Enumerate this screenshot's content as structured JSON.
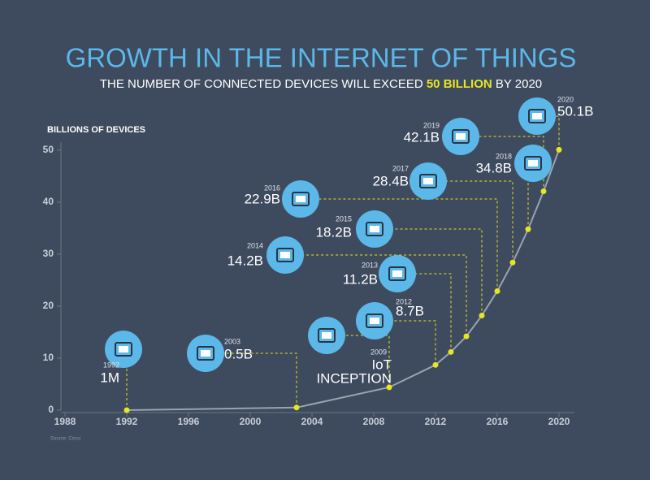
{
  "chart_data": {
    "type": "line",
    "title": "GROWTH IN THE INTERNET OF THINGS",
    "subtitle_parts": [
      "THE NUMBER OF CONNECTED DEVICES WILL EXCEED ",
      "50 BILLION",
      " BY 2020"
    ],
    "y_label": "BILLIONS OF DEVICES",
    "source": "Source: Cisco",
    "x": [
      1992,
      2003,
      2009,
      2012,
      2013,
      2014,
      2015,
      2016,
      2017,
      2018,
      2019,
      2020
    ],
    "series": [
      {
        "color": "#9aa3ad",
        "marker_color": "#e6e621",
        "values": [
          0.001,
          0.5,
          4.4,
          8.7,
          11.2,
          14.2,
          18.2,
          22.9,
          28.4,
          34.8,
          42.1,
          50.1
        ],
        "value_labels": [
          "1M",
          "0.5B",
          null,
          "8.7B",
          "11.2B",
          "14.2B",
          "18.2B",
          "22.9B",
          "28.4B",
          "34.8B",
          "42.1B",
          "50.1B"
        ]
      }
    ],
    "annotations": [
      {
        "lines": [
          "IoT",
          "INCEPTION"
        ]
      }
    ],
    "xlim": [
      1988,
      2021
    ],
    "xticks": [
      1988,
      1992,
      1996,
      2000,
      2004,
      2008,
      2012,
      2016,
      2020
    ],
    "ylim": [
      0,
      50
    ],
    "yticks": [
      0,
      10,
      20,
      30,
      40,
      50
    ]
  }
}
